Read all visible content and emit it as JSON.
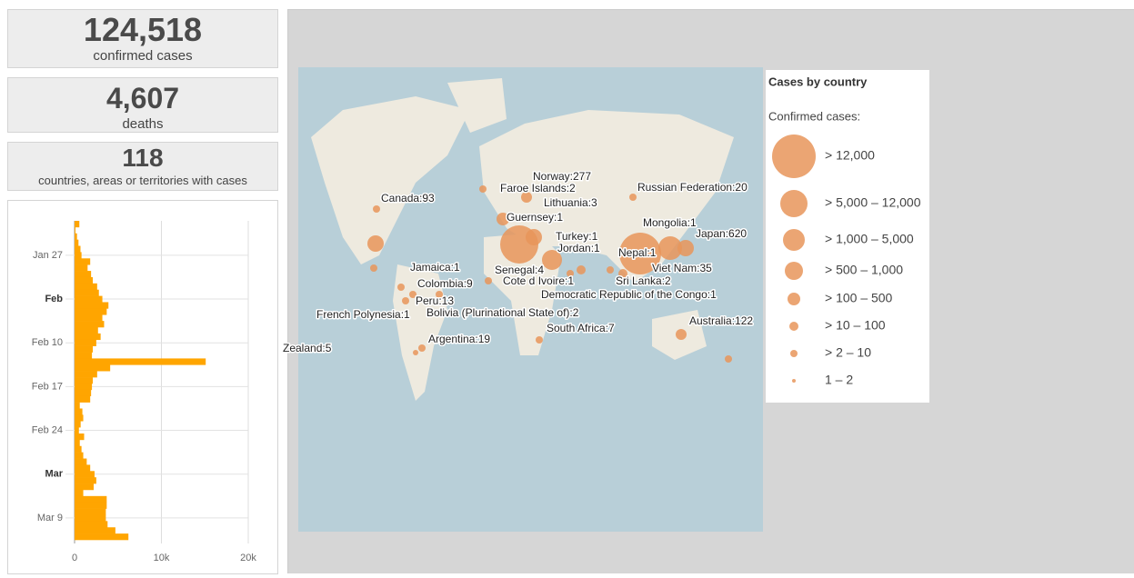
{
  "stats": [
    {
      "value": "124,518",
      "label": "confirmed cases"
    },
    {
      "value": "4,607",
      "label": "deaths"
    },
    {
      "value": "118",
      "label": "countries, areas or territories with cases"
    }
  ],
  "chart_data": {
    "type": "bar",
    "orientation": "horizontal",
    "color": "#ffa500",
    "categories": [
      null,
      null,
      null,
      null,
      null,
      "Jan 27",
      null,
      null,
      null,
      null,
      null,
      null,
      "Feb",
      null,
      null,
      null,
      null,
      null,
      null,
      "Feb 10",
      null,
      null,
      null,
      null,
      null,
      null,
      "Feb 17",
      null,
      null,
      null,
      null,
      null,
      null,
      "Feb 24",
      null,
      null,
      null,
      null,
      null,
      null,
      "Mar",
      null,
      null,
      null,
      null,
      null,
      null,
      "Mar 9",
      null,
      null,
      null
    ],
    "values": [
      550,
      100,
      280,
      450,
      680,
      800,
      1800,
      1500,
      1900,
      2100,
      2600,
      2800,
      3200,
      3900,
      3700,
      3200,
      3400,
      2700,
      3000,
      2500,
      2100,
      2000,
      15100,
      4100,
      2600,
      2100,
      2000,
      1900,
      1800,
      600,
      900,
      1000,
      700,
      500,
      1100,
      600,
      800,
      1000,
      1400,
      1800,
      2300,
      2500,
      2200,
      1000,
      3700,
      3700,
      3600,
      3600,
      3800,
      4700,
      6200
    ],
    "xlim": [
      0,
      20000
    ],
    "xticks": [
      0,
      {
        "value": 10000,
        "label": "10k"
      },
      {
        "value": 20000,
        "label": "20k"
      }
    ],
    "grid": true
  },
  "map": {
    "labels": [
      "Norway:277",
      "Faroe Islands:2",
      "Russian Federation:20",
      "Lithuania:3",
      "Canada:93",
      "Guernsey:1",
      "Mongolia:1",
      "Japan:620",
      "Turkey:1",
      "Jordan:1",
      "Nepal:1",
      "Jamaica:1",
      "Senegal:4",
      "Viet Nam:35",
      "Cote d Ivoire:1",
      "Colombia:9",
      "Sri Lanka:2",
      "Democratic Republic of the Congo:1",
      "Peru:13",
      "French Polynesia:1",
      "Bolivia (Plurinational State of):2",
      "Australia:122",
      "South Africa:7",
      "Argentina:19",
      "Zealand:5"
    ]
  },
  "legend": {
    "title": "Cases by country",
    "subtitle": "Confirmed cases:",
    "items": [
      "> 12,000",
      "> 5,000 – 12,000",
      "> 1,000 – 5,000",
      "> 500 – 1,000",
      "> 100 – 500",
      "> 10 – 100",
      "> 2 – 10",
      "1 – 2"
    ]
  }
}
